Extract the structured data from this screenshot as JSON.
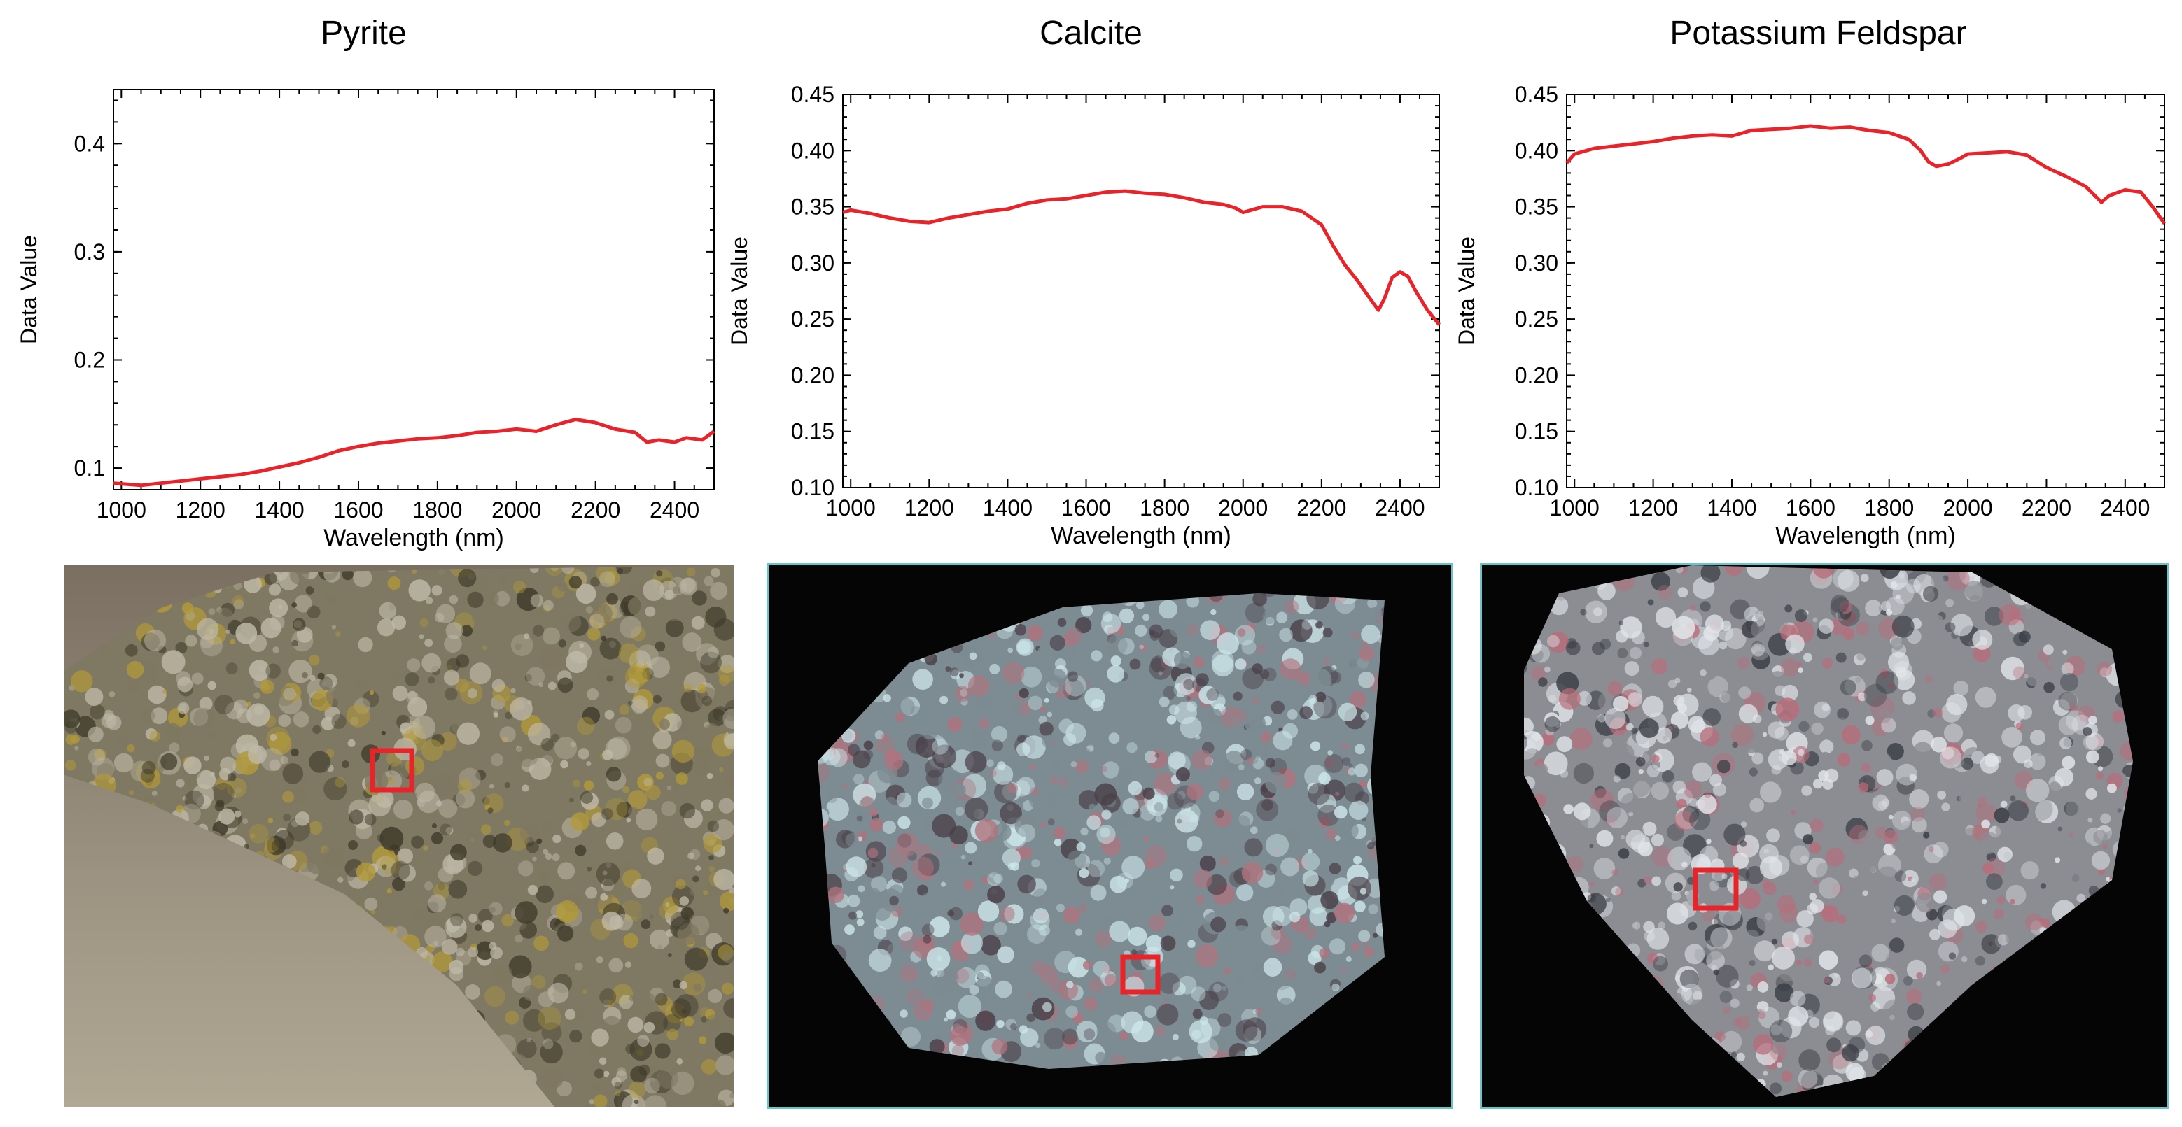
{
  "chart_data": [
    {
      "type": "line",
      "title": "Pyrite",
      "xlabel": "Wavelength (nm)",
      "ylabel": "Data Value",
      "xlim": [
        980,
        2500
      ],
      "ylim": [
        0.08,
        0.45
      ],
      "xticks": [
        1000,
        1200,
        1400,
        1600,
        1800,
        2000,
        2200,
        2400
      ],
      "yticks": [
        0.1,
        0.2,
        0.3,
        0.4
      ],
      "ytick_labels": [
        "0.1",
        "0.2",
        "0.3",
        "0.4"
      ],
      "grid": false,
      "series": [
        {
          "color": "#e8232a",
          "x": [
            980,
            1050,
            1100,
            1150,
            1200,
            1250,
            1300,
            1350,
            1400,
            1450,
            1500,
            1550,
            1600,
            1650,
            1700,
            1750,
            1800,
            1850,
            1900,
            1950,
            2000,
            2050,
            2100,
            2150,
            2200,
            2250,
            2300,
            2330,
            2360,
            2400,
            2430,
            2470,
            2500
          ],
          "y": [
            0.086,
            0.084,
            0.086,
            0.088,
            0.09,
            0.092,
            0.094,
            0.097,
            0.101,
            0.105,
            0.11,
            0.116,
            0.12,
            0.123,
            0.125,
            0.127,
            0.128,
            0.13,
            0.133,
            0.134,
            0.136,
            0.134,
            0.14,
            0.145,
            0.142,
            0.136,
            0.133,
            0.124,
            0.126,
            0.124,
            0.128,
            0.126,
            0.134
          ]
        }
      ]
    },
    {
      "type": "line",
      "title": "Calcite",
      "xlabel": "Wavelength (nm)",
      "ylabel": "Data Value",
      "xlim": [
        980,
        2500
      ],
      "ylim": [
        0.1,
        0.45
      ],
      "xticks": [
        1000,
        1200,
        1400,
        1600,
        1800,
        2000,
        2200,
        2400
      ],
      "yticks": [
        0.1,
        0.15,
        0.2,
        0.25,
        0.3,
        0.35,
        0.4,
        0.45
      ],
      "ytick_labels": [
        "0.10",
        "0.15",
        "0.20",
        "0.25",
        "0.30",
        "0.35",
        "0.40",
        "0.45"
      ],
      "grid": false,
      "series": [
        {
          "color": "#e8232a",
          "x": [
            980,
            1000,
            1050,
            1100,
            1150,
            1200,
            1250,
            1300,
            1350,
            1400,
            1450,
            1500,
            1550,
            1600,
            1650,
            1700,
            1750,
            1800,
            1850,
            1900,
            1950,
            1980,
            2000,
            2050,
            2100,
            2150,
            2200,
            2230,
            2260,
            2290,
            2320,
            2345,
            2360,
            2380,
            2400,
            2420,
            2440,
            2470,
            2500
          ],
          "y": [
            0.345,
            0.347,
            0.344,
            0.34,
            0.337,
            0.336,
            0.34,
            0.343,
            0.346,
            0.348,
            0.353,
            0.356,
            0.357,
            0.36,
            0.363,
            0.364,
            0.362,
            0.361,
            0.358,
            0.354,
            0.352,
            0.349,
            0.345,
            0.35,
            0.35,
            0.346,
            0.334,
            0.315,
            0.298,
            0.285,
            0.27,
            0.258,
            0.268,
            0.287,
            0.292,
            0.288,
            0.275,
            0.258,
            0.245
          ]
        }
      ]
    },
    {
      "type": "line",
      "title": "Potassium Feldspar",
      "xlabel": "Wavelength (nm)",
      "ylabel": "Data Value",
      "xlim": [
        980,
        2500
      ],
      "ylim": [
        0.1,
        0.45
      ],
      "xticks": [
        1000,
        1200,
        1400,
        1600,
        1800,
        2000,
        2200,
        2400
      ],
      "yticks": [
        0.1,
        0.15,
        0.2,
        0.25,
        0.3,
        0.35,
        0.4,
        0.45
      ],
      "ytick_labels": [
        "0.10",
        "0.15",
        "0.20",
        "0.25",
        "0.30",
        "0.35",
        "0.40",
        "0.45"
      ],
      "grid": false,
      "series": [
        {
          "color": "#e8232a",
          "x": [
            980,
            1000,
            1050,
            1100,
            1150,
            1200,
            1250,
            1300,
            1350,
            1400,
            1450,
            1500,
            1550,
            1600,
            1650,
            1700,
            1750,
            1800,
            1850,
            1880,
            1900,
            1920,
            1950,
            1980,
            2000,
            2050,
            2100,
            2150,
            2200,
            2250,
            2300,
            2340,
            2360,
            2400,
            2440,
            2470,
            2500
          ],
          "y": [
            0.389,
            0.397,
            0.402,
            0.404,
            0.406,
            0.408,
            0.411,
            0.413,
            0.414,
            0.413,
            0.418,
            0.419,
            0.42,
            0.422,
            0.42,
            0.421,
            0.418,
            0.416,
            0.41,
            0.4,
            0.39,
            0.386,
            0.388,
            0.393,
            0.397,
            0.398,
            0.399,
            0.396,
            0.385,
            0.377,
            0.368,
            0.354,
            0.36,
            0.365,
            0.363,
            0.35,
            0.335
          ]
        }
      ]
    }
  ],
  "photos": [
    {
      "mineral": "Pyrite",
      "style": "natural",
      "colors": {
        "bg": "#8f8677",
        "rock": "#7f7862",
        "light": "#bfb9a8",
        "dark": "#3f3a2a",
        "accent": "#b29a3a"
      }
    },
    {
      "mineral": "Calcite",
      "style": "false-color",
      "colors": {
        "bg": "#050505",
        "rock": "#7d8b92",
        "light": "#cde6ea",
        "dark": "#4a3f48",
        "accent": "#b0737e"
      }
    },
    {
      "mineral": "Potassium Feldspar",
      "style": "false-color",
      "colors": {
        "bg": "#050505",
        "rock": "#8c8d93",
        "light": "#e2e6ea",
        "dark": "#3a3d44",
        "accent": "#b86c7a"
      }
    }
  ],
  "marker_color": "#e8232a"
}
